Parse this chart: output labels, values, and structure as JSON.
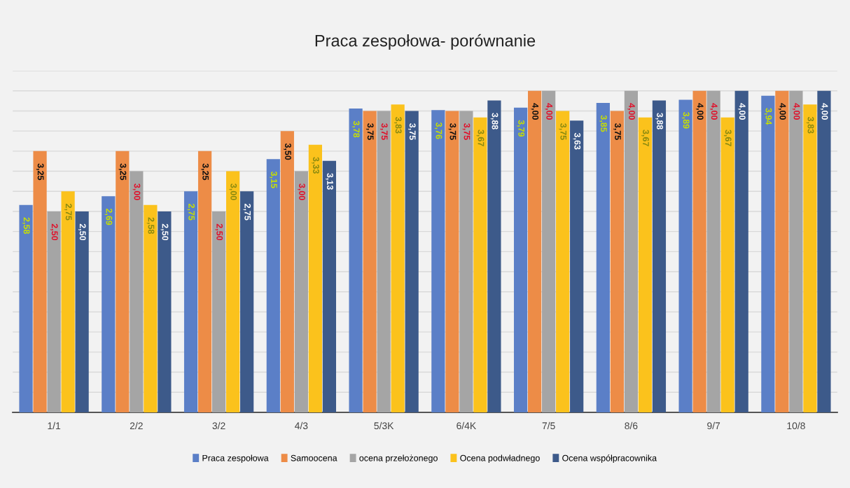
{
  "chart_data": {
    "type": "bar",
    "title": "Praca zespołowa- porównanie",
    "categories": [
      "1/1",
      "2/2",
      "3/2",
      "4/3",
      "5/3K",
      "6/4K",
      "7/5",
      "8/6",
      "9/7",
      "10/8"
    ],
    "series": [
      {
        "name": "Praca zespołowa",
        "color": "#5b7fc7",
        "values": [
          2.58,
          2.69,
          2.75,
          3.15,
          3.78,
          3.76,
          3.79,
          3.85,
          3.89,
          3.94
        ],
        "value_labels": [
          "2,58",
          "2,69",
          "2,75",
          "3,15",
          "3,78",
          "3,76",
          "3,79",
          "3,85",
          "3,89",
          "3,94"
        ]
      },
      {
        "name": "Samoocena",
        "color": "#ed8c47",
        "values": [
          3.25,
          3.25,
          3.25,
          3.5,
          3.75,
          3.75,
          4.0,
          3.75,
          4.0,
          4.0
        ],
        "value_labels": [
          "3,25",
          "3,25",
          "3,25",
          "3,50",
          "3,75",
          "3,75",
          "4,00",
          "3,75",
          "4,00",
          "4,00"
        ]
      },
      {
        "name": "ocena przełożonego",
        "color": "#a5a5a5",
        "values": [
          2.5,
          3.0,
          2.5,
          3.0,
          3.75,
          3.75,
          4.0,
          4.0,
          4.0,
          4.0
        ],
        "value_labels": [
          "2,50",
          "3,00",
          "2,50",
          "3,00",
          "3,75",
          "3,75",
          "4,00",
          "4,00",
          "4,00",
          "4,00"
        ]
      },
      {
        "name": "Ocena podwładnego",
        "color": "#fbc21c",
        "values": [
          2.75,
          2.58,
          3.0,
          3.33,
          3.83,
          3.67,
          3.75,
          3.67,
          3.67,
          3.83
        ],
        "value_labels": [
          "2,75",
          "2,58",
          "3,00",
          "3,33",
          "3,83",
          "3,67",
          "3,75",
          "3,67",
          "3,67",
          "3,83"
        ]
      },
      {
        "name": "Ocena współpracownika",
        "color": "#3d5a8a",
        "values": [
          2.5,
          2.5,
          2.75,
          3.13,
          3.75,
          3.88,
          3.63,
          3.88,
          4.0,
          4.0
        ],
        "value_labels": [
          "2,50",
          "2,50",
          "2,75",
          "3,13",
          "3,75",
          "3,88",
          "3,63",
          "3,88",
          "4,00",
          "4,00"
        ]
      }
    ],
    "ylim": [
      0,
      4.25
    ],
    "yticks": [
      {
        "value": 0,
        "label": null
      },
      {
        "value": 0.25,
        "label": null
      },
      {
        "value": 0.5,
        "label": null
      },
      {
        "value": 0.75,
        "label": null
      },
      {
        "value": 1,
        "label": null
      },
      {
        "value": 1.25,
        "label": null
      },
      {
        "value": 1.5,
        "label": null
      },
      {
        "value": 1.75,
        "label": null
      },
      {
        "value": 2,
        "label": null
      },
      {
        "value": 2.25,
        "label": null
      },
      {
        "value": 2.5,
        "label": null
      },
      {
        "value": 2.75,
        "label": null
      },
      {
        "value": 3,
        "label": null
      },
      {
        "value": 3.25,
        "label": null
      },
      {
        "value": 3.5,
        "label": null
      },
      {
        "value": 3.75,
        "label": null
      },
      {
        "value": 4,
        "label": null
      },
      {
        "value": 4.25,
        "label": null
      }
    ],
    "tick_labels": "x",
    "grid": "y",
    "legend": "bottom"
  }
}
